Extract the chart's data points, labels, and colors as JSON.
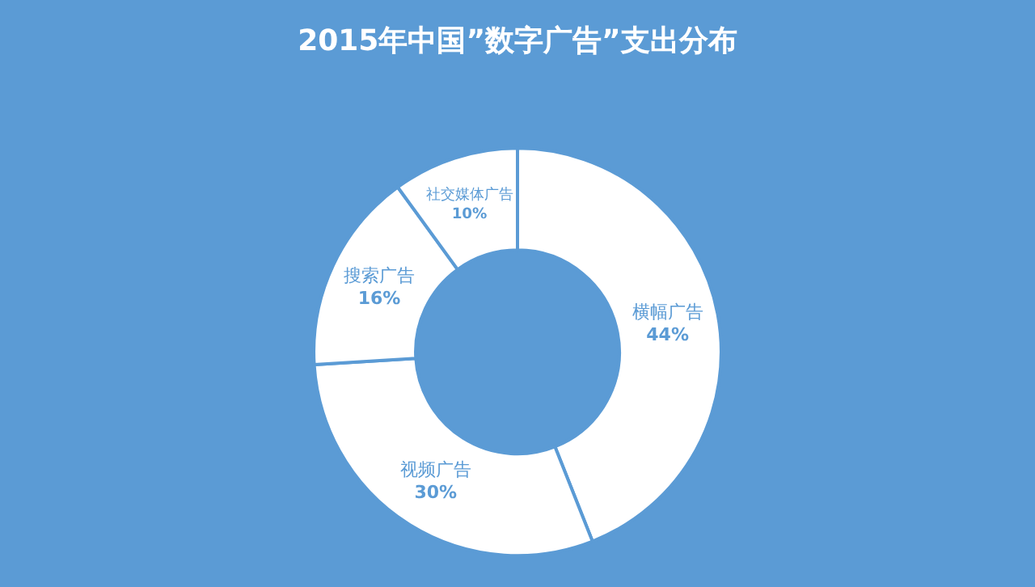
{
  "chart_data": {
    "type": "donut",
    "title": "2015年中国”数字广告”支出分布",
    "categories": [
      "横幅广告",
      "视频广告",
      "搜索广告",
      "社交媒体广告"
    ],
    "values": [
      44,
      30,
      16,
      10
    ],
    "colors": [
      "#ffffff",
      "#ffffff",
      "#ffffff",
      "#ffffff"
    ],
    "value_labels": [
      "44%",
      "30%",
      "16%",
      "10%"
    ],
    "legend": false
  }
}
